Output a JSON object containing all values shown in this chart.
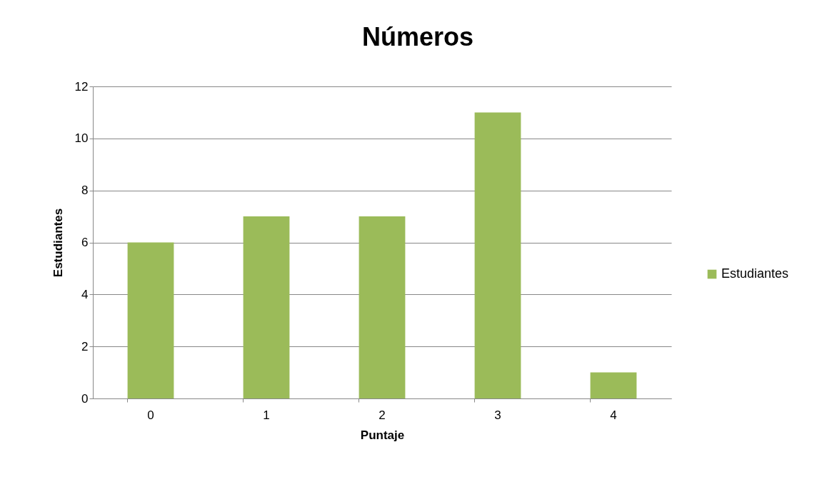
{
  "chart_data": {
    "type": "bar",
    "title": "Números",
    "xlabel": "Puntaje",
    "ylabel": "Estudiantes",
    "categories": [
      "0",
      "1",
      "2",
      "3",
      "4"
    ],
    "series": [
      {
        "name": "Estudiantes",
        "color": "#9bbb59",
        "values": [
          6,
          7,
          7,
          11,
          1
        ]
      }
    ],
    "ylim": [
      0,
      12
    ],
    "yticks": [
      0,
      2,
      4,
      6,
      8,
      10,
      12
    ],
    "grid": "y",
    "legend": "right"
  }
}
